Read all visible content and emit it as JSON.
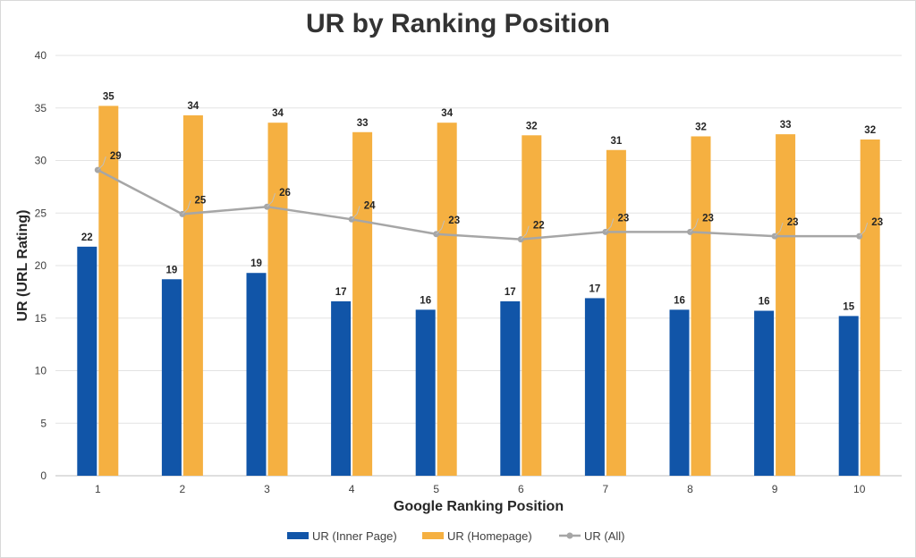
{
  "chart_data": {
    "type": "bar",
    "title": "UR by Ranking Position",
    "xlabel": "Google Ranking Position",
    "ylabel": "UR (URL Rating)",
    "ylim": [
      0,
      40
    ],
    "yticks": [
      0,
      5,
      10,
      15,
      20,
      25,
      30,
      35,
      40
    ],
    "grid": true,
    "legend_position": "bottom",
    "categories": [
      "1",
      "2",
      "3",
      "4",
      "5",
      "6",
      "7",
      "8",
      "9",
      "10"
    ],
    "series": [
      {
        "name": "UR (Inner Page)",
        "kind": "bar",
        "color": "#1155a8",
        "values": [
          21.8,
          18.7,
          19.3,
          16.6,
          15.8,
          16.6,
          16.9,
          15.8,
          15.7,
          15.2
        ],
        "labels": [
          "22",
          "19",
          "19",
          "17",
          "16",
          "17",
          "17",
          "16",
          "16",
          "15"
        ]
      },
      {
        "name": "UR (Homepage)",
        "kind": "bar",
        "color": "#f5b041",
        "values": [
          35.2,
          34.3,
          33.6,
          32.7,
          33.6,
          32.4,
          31.0,
          32.3,
          32.5,
          32.0
        ],
        "labels": [
          "35",
          "34",
          "34",
          "33",
          "34",
          "32",
          "31",
          "32",
          "33",
          "32"
        ]
      },
      {
        "name": "UR (All)",
        "kind": "line",
        "color": "#a6a6a6",
        "values": [
          29.1,
          24.9,
          25.6,
          24.4,
          23.0,
          22.5,
          23.2,
          23.2,
          22.8,
          22.8
        ],
        "labels": [
          "29",
          "25",
          "26",
          "24",
          "23",
          "22",
          "23",
          "23",
          "23",
          "23"
        ]
      }
    ]
  }
}
